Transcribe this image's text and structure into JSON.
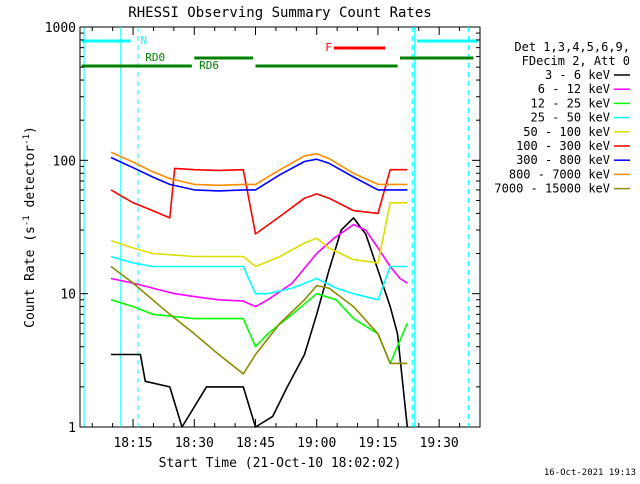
{
  "chart_data": {
    "type": "line",
    "title": "RHESSI Observing Summary Count Rates",
    "xlabel": "Start Time (21-Oct-10 18:02:02)",
    "ylabel_main": "Count Rate (s",
    "ylabel_sup1": "-1",
    "ylabel_mid": " detector",
    "ylabel_sup2": "-1",
    "ylabel_end": ")",
    "y_scale": "log",
    "ylim": [
      1,
      1000
    ],
    "xlim_minutes": [
      18.0333,
      19.6667
    ],
    "y_ticks": [
      {
        "value": 1,
        "label": "1"
      },
      {
        "value": 10,
        "label": "10"
      },
      {
        "value": 100,
        "label": "100"
      },
      {
        "value": 1000,
        "label": "1000"
      }
    ],
    "x_ticks": [
      {
        "value": 18.25,
        "label": "18:15"
      },
      {
        "value": 18.5,
        "label": "18:30"
      },
      {
        "value": 18.75,
        "label": "18:45"
      },
      {
        "value": 19.0,
        "label": "19:00"
      },
      {
        "value": 19.25,
        "label": "19:15"
      },
      {
        "value": 19.5,
        "label": "19:30"
      }
    ],
    "legend_header": [
      "Det 1,3,4,5,6,9,",
      "FDecim 2, Att 0"
    ],
    "legend_placement": "right",
    "timestamp": "16-Oct-2021 19:13",
    "series": [
      {
        "name": "3 - 6 keV",
        "color": "#000000",
        "points": [
          [
            18.16,
            3.5
          ],
          [
            18.28,
            3.5
          ],
          [
            18.3,
            2.2
          ],
          [
            18.4,
            2.0
          ],
          [
            18.45,
            1.0
          ],
          [
            18.55,
            2.0
          ],
          [
            18.7,
            2.0
          ],
          [
            18.75,
            1.0
          ],
          [
            18.82,
            1.2
          ],
          [
            18.88,
            2.0
          ],
          [
            18.95,
            3.5
          ],
          [
            19.0,
            7.0
          ],
          [
            19.05,
            15
          ],
          [
            19.1,
            30
          ],
          [
            19.15,
            37
          ],
          [
            19.2,
            28
          ],
          [
            19.25,
            15
          ],
          [
            19.3,
            8
          ],
          [
            19.33,
            5
          ],
          [
            19.37,
            1.0
          ]
        ]
      },
      {
        "name": "6 - 12 keV",
        "color": "#ff00ff",
        "points": [
          [
            18.16,
            13
          ],
          [
            18.25,
            12
          ],
          [
            18.33,
            11
          ],
          [
            18.42,
            10
          ],
          [
            18.5,
            9.5
          ],
          [
            18.6,
            9
          ],
          [
            18.7,
            8.8
          ],
          [
            18.75,
            8
          ],
          [
            18.8,
            9
          ],
          [
            18.9,
            12
          ],
          [
            19.0,
            20
          ],
          [
            19.07,
            26
          ],
          [
            19.15,
            33
          ],
          [
            19.2,
            30
          ],
          [
            19.25,
            22
          ],
          [
            19.3,
            16
          ],
          [
            19.34,
            13
          ],
          [
            19.37,
            12
          ]
        ]
      },
      {
        "name": "12 - 25 keV",
        "color": "#00ff00",
        "points": [
          [
            18.16,
            9
          ],
          [
            18.25,
            8
          ],
          [
            18.33,
            7
          ],
          [
            18.5,
            6.5
          ],
          [
            18.7,
            6.5
          ],
          [
            18.75,
            4
          ],
          [
            18.8,
            5
          ],
          [
            18.9,
            7
          ],
          [
            19.0,
            10
          ],
          [
            19.08,
            9
          ],
          [
            19.15,
            6.5
          ],
          [
            19.25,
            5
          ],
          [
            19.3,
            3
          ],
          [
            19.37,
            6
          ]
        ]
      },
      {
        "name": "25 - 50 keV",
        "color": "#00ffff",
        "points": [
          [
            18.16,
            19
          ],
          [
            18.25,
            17
          ],
          [
            18.33,
            16
          ],
          [
            18.5,
            16
          ],
          [
            18.7,
            16
          ],
          [
            18.75,
            10
          ],
          [
            18.8,
            10
          ],
          [
            18.9,
            11
          ],
          [
            19.0,
            13
          ],
          [
            19.08,
            11
          ],
          [
            19.15,
            10
          ],
          [
            19.25,
            9
          ],
          [
            19.3,
            16
          ],
          [
            19.37,
            16
          ]
        ]
      },
      {
        "name": "50 - 100 keV",
        "color": "#dddd00",
        "points": [
          [
            18.16,
            25
          ],
          [
            18.25,
            22
          ],
          [
            18.33,
            20
          ],
          [
            18.5,
            19
          ],
          [
            18.7,
            19
          ],
          [
            18.75,
            16
          ],
          [
            18.85,
            19
          ],
          [
            18.95,
            24
          ],
          [
            19.0,
            26
          ],
          [
            19.05,
            22
          ],
          [
            19.15,
            18
          ],
          [
            19.25,
            17
          ],
          [
            19.3,
            48
          ],
          [
            19.37,
            48
          ]
        ]
      },
      {
        "name": "100 - 300 keV",
        "color": "#ff0000",
        "points": [
          [
            18.16,
            60
          ],
          [
            18.25,
            48
          ],
          [
            18.33,
            42
          ],
          [
            18.4,
            37
          ],
          [
            18.42,
            87
          ],
          [
            18.5,
            85
          ],
          [
            18.6,
            84
          ],
          [
            18.7,
            85
          ],
          [
            18.75,
            28
          ],
          [
            18.85,
            38
          ],
          [
            18.95,
            52
          ],
          [
            19.0,
            56
          ],
          [
            19.05,
            52
          ],
          [
            19.15,
            42
          ],
          [
            19.25,
            40
          ],
          [
            19.3,
            85
          ],
          [
            19.37,
            85
          ]
        ]
      },
      {
        "name": "300 - 800 keV",
        "color": "#0000ff",
        "points": [
          [
            18.16,
            105
          ],
          [
            18.25,
            88
          ],
          [
            18.33,
            75
          ],
          [
            18.4,
            66
          ],
          [
            18.5,
            60
          ],
          [
            18.6,
            59
          ],
          [
            18.7,
            60
          ],
          [
            18.75,
            60
          ],
          [
            18.85,
            78
          ],
          [
            18.95,
            98
          ],
          [
            19.0,
            102
          ],
          [
            19.05,
            95
          ],
          [
            19.15,
            75
          ],
          [
            19.25,
            60
          ],
          [
            19.3,
            60
          ],
          [
            19.37,
            60
          ]
        ]
      },
      {
        "name": "800 - 7000 keV",
        "color": "#ff8c00",
        "points": [
          [
            18.16,
            115
          ],
          [
            18.25,
            97
          ],
          [
            18.33,
            82
          ],
          [
            18.4,
            73
          ],
          [
            18.5,
            66
          ],
          [
            18.6,
            65
          ],
          [
            18.7,
            66
          ],
          [
            18.75,
            66
          ],
          [
            18.85,
            85
          ],
          [
            18.95,
            108
          ],
          [
            19.0,
            112
          ],
          [
            19.05,
            103
          ],
          [
            19.15,
            80
          ],
          [
            19.25,
            66
          ],
          [
            19.3,
            66
          ],
          [
            19.37,
            66
          ]
        ]
      },
      {
        "name": "7000 - 15000 keV",
        "color": "#8b8b00",
        "points": [
          [
            18.16,
            16
          ],
          [
            18.25,
            12
          ],
          [
            18.33,
            9
          ],
          [
            18.4,
            7
          ],
          [
            18.5,
            5
          ],
          [
            18.6,
            3.5
          ],
          [
            18.7,
            2.5
          ],
          [
            18.75,
            3.5
          ],
          [
            18.85,
            6
          ],
          [
            18.95,
            9
          ],
          [
            19.0,
            11.5
          ],
          [
            19.05,
            11
          ],
          [
            19.15,
            8
          ],
          [
            19.25,
            5
          ],
          [
            19.3,
            3
          ],
          [
            19.37,
            3
          ]
        ]
      }
    ],
    "annotations": {
      "N_label": "N",
      "F_label": "F",
      "RD0_label": "RD0",
      "RD6_label": "RD6",
      "N_color": "#00ffff",
      "F_color": "#ff0000",
      "RD_color": "#008000"
    }
  }
}
